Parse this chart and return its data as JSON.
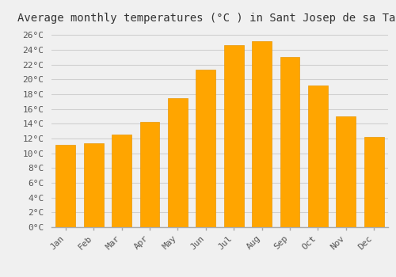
{
  "title": "Average monthly temperatures (°C ) in Sant Josep de sa Talaia",
  "months": [
    "Jan",
    "Feb",
    "Mar",
    "Apr",
    "May",
    "Jun",
    "Jul",
    "Aug",
    "Sep",
    "Oct",
    "Nov",
    "Dec"
  ],
  "temperatures": [
    11.1,
    11.4,
    12.5,
    14.3,
    17.5,
    21.3,
    24.6,
    25.2,
    23.0,
    19.2,
    15.0,
    12.2
  ],
  "bar_color": "#FFA500",
  "bar_edge_color": "#E8980A",
  "ylim": [
    0,
    27
  ],
  "yticks": [
    0,
    2,
    4,
    6,
    8,
    10,
    12,
    14,
    16,
    18,
    20,
    22,
    24,
    26
  ],
  "background_color": "#f0f0f0",
  "grid_color": "#d0d0d0",
  "title_fontsize": 10,
  "tick_fontsize": 8,
  "font_family": "monospace"
}
